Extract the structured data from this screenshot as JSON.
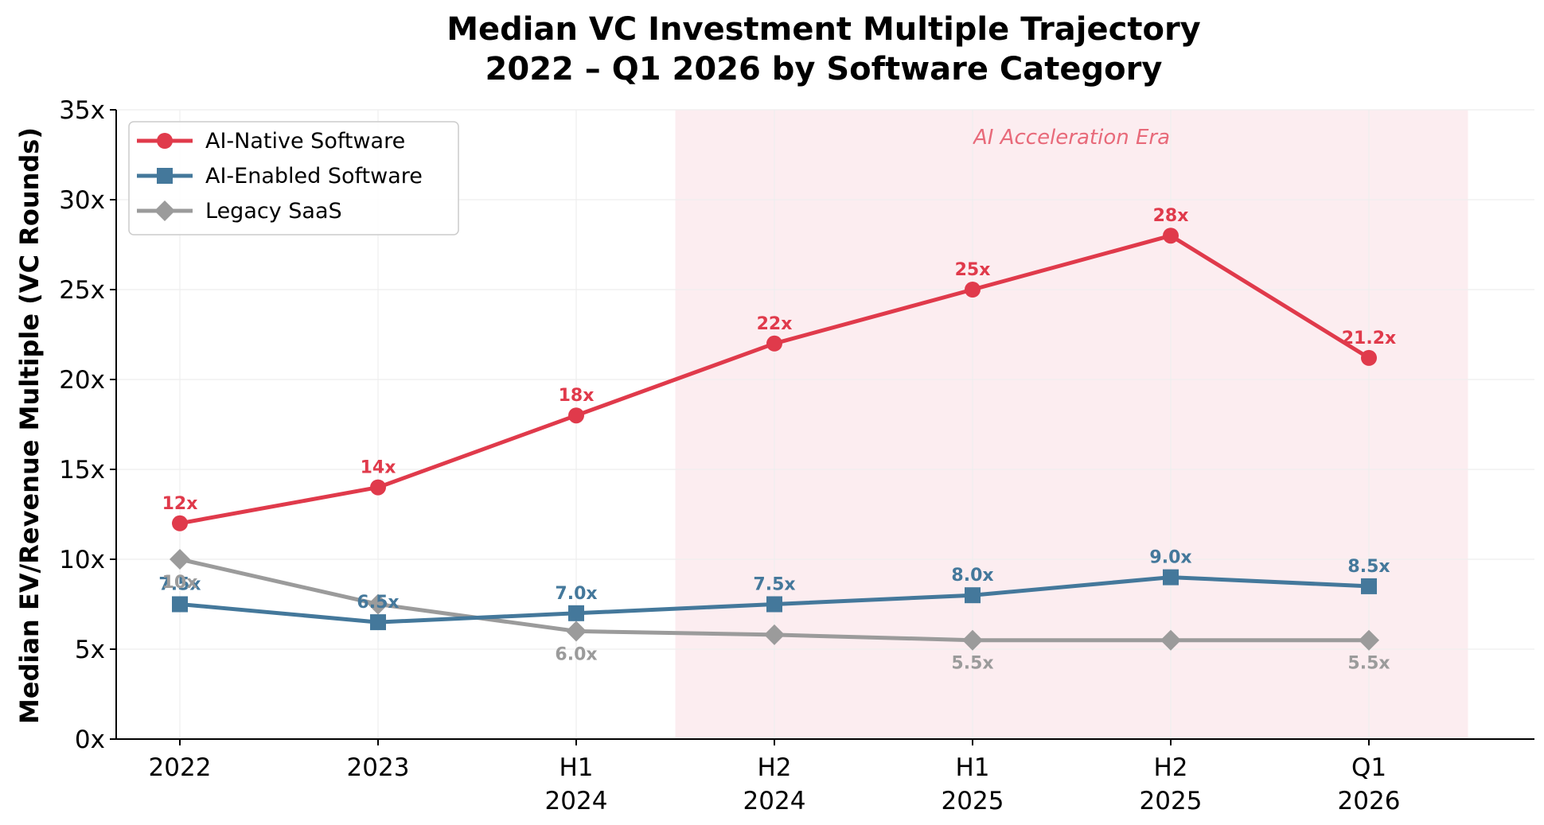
{
  "chart_data": {
    "type": "line",
    "title_line1": "Median VC Investment Multiple Trajectory",
    "title_line2": "2022 – Q1 2026 by Software Category",
    "xlabel": "",
    "ylabel": "Median EV/Revenue Multiple (VC Rounds)",
    "categories": [
      [
        "2022"
      ],
      [
        "2023"
      ],
      [
        "H1",
        "2024"
      ],
      [
        "H2",
        "2024"
      ],
      [
        "H1",
        "2025"
      ],
      [
        "H2",
        "2025"
      ],
      [
        "Q1",
        "2026"
      ]
    ],
    "ylim": [
      0,
      35
    ],
    "yticks": [
      0,
      5,
      10,
      15,
      20,
      25,
      30,
      35
    ],
    "ytick_labels": [
      "0x",
      "5x",
      "10x",
      "15x",
      "20x",
      "25x",
      "30x",
      "35x"
    ],
    "grid": true,
    "legend_position": "top-left",
    "shaded_region": {
      "label": "AI Acceleration Era",
      "from_index": 2.5,
      "to_index": 6.5,
      "color": "#fcedf0",
      "label_color": "#e86a7a"
    },
    "series": [
      {
        "name": "AI-Native Software",
        "color": "#e03a4b",
        "marker": "circle",
        "values": [
          12,
          14,
          18,
          22,
          25,
          28,
          21.2
        ],
        "labels": [
          "12x",
          "14x",
          "18x",
          "22x",
          "25x",
          "28x",
          "21.2x"
        ],
        "label_pos": [
          "above",
          "above",
          "above",
          "above",
          "above",
          "above",
          "above"
        ]
      },
      {
        "name": "AI-Enabled Software",
        "color": "#44789b",
        "marker": "square",
        "values": [
          7.5,
          6.5,
          7.0,
          7.5,
          8.0,
          9.0,
          8.5
        ],
        "labels": [
          "7.5x",
          "6.5x",
          "7.0x",
          "7.5x",
          "8.0x",
          "9.0x",
          "8.5x"
        ],
        "label_pos": [
          "above",
          "above",
          "above",
          "above",
          "above",
          "above",
          "above"
        ]
      },
      {
        "name": "Legacy SaaS",
        "color": "#9b9b9b",
        "marker": "diamond",
        "values": [
          10,
          7.5,
          6.0,
          5.8,
          5.5,
          5.5,
          5.5
        ],
        "labels": [
          "10x",
          null,
          "6.0x",
          null,
          "5.5x",
          null,
          "5.5x"
        ],
        "label_pos": [
          "below",
          "below",
          "below",
          "below",
          "below",
          "below",
          "below"
        ]
      }
    ]
  }
}
